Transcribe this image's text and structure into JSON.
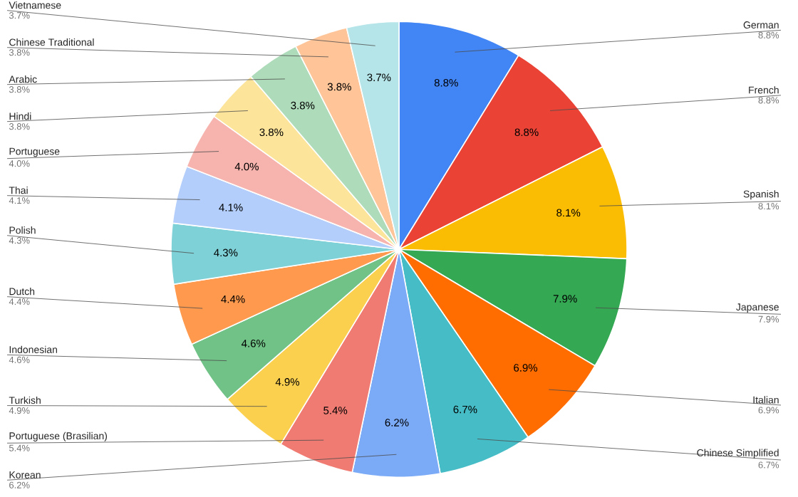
{
  "chart_data": {
    "type": "pie",
    "value_labels": [
      "8.8%",
      "8.8%",
      "8.1%",
      "7.9%",
      "6.9%",
      "6.7%",
      "6.2%",
      "5.4%",
      "4.9%",
      "4.6%",
      "4.4%",
      "4.3%",
      "4.1%",
      "4.0%",
      "3.8%",
      "3.8%",
      "3.8%",
      "3.7%"
    ],
    "categories": [
      "German",
      "French",
      "Spanish",
      "Japanese",
      "Italian",
      "Chinese Simplified",
      "Korean",
      "Portuguese (Brasilian)",
      "Turkish",
      "Indonesian",
      "Dutch",
      "Polish",
      "Thai",
      "Portuguese",
      "Hindi",
      "Arabic",
      "Chinese Traditional",
      "Vietnamese"
    ],
    "values": [
      8.8,
      8.8,
      8.1,
      7.9,
      6.9,
      6.7,
      6.2,
      5.4,
      4.9,
      4.6,
      4.4,
      4.3,
      4.1,
      4.0,
      3.8,
      3.8,
      3.8,
      3.7
    ],
    "colors": [
      "#4285f4",
      "#ea4335",
      "#fbbc04",
      "#34a853",
      "#ff6d01",
      "#46bdc6",
      "#7baaf7",
      "#f07b72",
      "#fcd04f",
      "#71c287",
      "#ff994d",
      "#7ed1d7",
      "#b3cefb",
      "#f7b4ae",
      "#fde49b",
      "#aedcba",
      "#ffc599",
      "#b5e5e8"
    ]
  }
}
